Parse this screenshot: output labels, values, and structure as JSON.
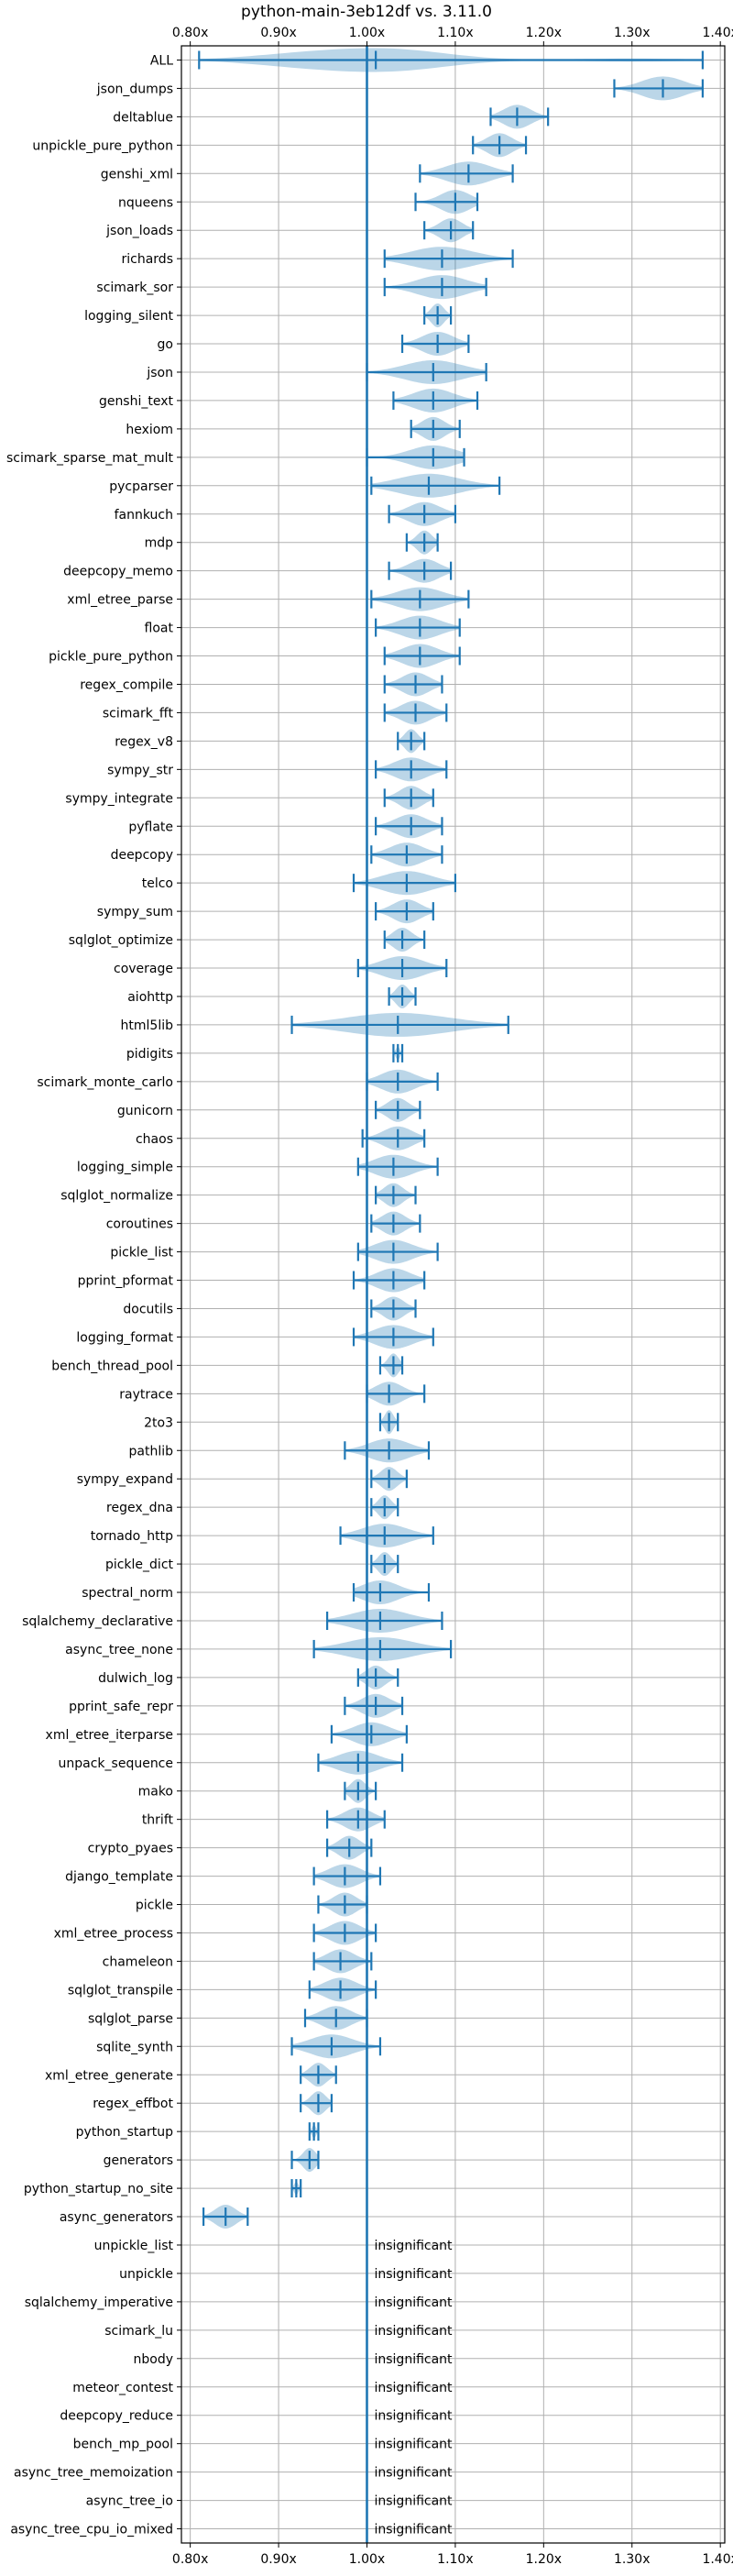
{
  "chart_data": {
    "type": "violin",
    "title": "python-main-3eb12df vs. 3.11.0",
    "xlim": [
      0.79,
      1.405
    ],
    "xticks": [
      0.8,
      0.9,
      1.0,
      1.1,
      1.2,
      1.3,
      1.4
    ],
    "xtick_labels": [
      "0.80x",
      "0.90x",
      "1.00x",
      "1.10x",
      "1.20x",
      "1.30x",
      "1.40x"
    ],
    "reference_x": 1.0,
    "grid": true,
    "tick_labels_top": true,
    "tick_labels_bottom": true,
    "insignificant_label": "insignificant",
    "benchmarks": [
      {
        "name": "ALL",
        "min": 0.81,
        "max": 1.38,
        "median": 1.01,
        "modes": [
          [
            0.93,
            0.6
          ],
          [
            1.03,
            1.0
          ],
          [
            1.3,
            0.15
          ]
        ]
      },
      {
        "name": "json_dumps",
        "min": 1.28,
        "max": 1.38,
        "median": 1.335
      },
      {
        "name": "deltablue",
        "min": 1.14,
        "max": 1.205,
        "median": 1.17
      },
      {
        "name": "unpickle_pure_python",
        "min": 1.12,
        "max": 1.18,
        "median": 1.15
      },
      {
        "name": "genshi_xml",
        "min": 1.06,
        "max": 1.165,
        "median": 1.115
      },
      {
        "name": "nqueens",
        "min": 1.055,
        "max": 1.125,
        "median": 1.1
      },
      {
        "name": "json_loads",
        "min": 1.065,
        "max": 1.12,
        "median": 1.095
      },
      {
        "name": "richards",
        "min": 1.02,
        "max": 1.165,
        "median": 1.085
      },
      {
        "name": "scimark_sor",
        "min": 1.02,
        "max": 1.135,
        "median": 1.085
      },
      {
        "name": "logging_silent",
        "min": 1.065,
        "max": 1.095,
        "median": 1.08
      },
      {
        "name": "go",
        "min": 1.04,
        "max": 1.115,
        "median": 1.08
      },
      {
        "name": "json",
        "min": 1.0,
        "max": 1.135,
        "median": 1.075
      },
      {
        "name": "genshi_text",
        "min": 1.03,
        "max": 1.125,
        "median": 1.075
      },
      {
        "name": "hexiom",
        "min": 1.05,
        "max": 1.105,
        "median": 1.075
      },
      {
        "name": "scimark_sparse_mat_mult",
        "min": 1.0,
        "max": 1.11,
        "median": 1.075
      },
      {
        "name": "pycparser",
        "min": 1.005,
        "max": 1.15,
        "median": 1.07
      },
      {
        "name": "fannkuch",
        "min": 1.025,
        "max": 1.1,
        "median": 1.065
      },
      {
        "name": "mdp",
        "min": 1.045,
        "max": 1.08,
        "median": 1.065
      },
      {
        "name": "deepcopy_memo",
        "min": 1.025,
        "max": 1.095,
        "median": 1.065
      },
      {
        "name": "xml_etree_parse",
        "min": 1.005,
        "max": 1.115,
        "median": 1.06
      },
      {
        "name": "float",
        "min": 1.01,
        "max": 1.105,
        "median": 1.06
      },
      {
        "name": "pickle_pure_python",
        "min": 1.02,
        "max": 1.105,
        "median": 1.06
      },
      {
        "name": "regex_compile",
        "min": 1.02,
        "max": 1.085,
        "median": 1.055
      },
      {
        "name": "scimark_fft",
        "min": 1.02,
        "max": 1.09,
        "median": 1.055
      },
      {
        "name": "regex_v8",
        "min": 1.035,
        "max": 1.065,
        "median": 1.05
      },
      {
        "name": "sympy_str",
        "min": 1.01,
        "max": 1.09,
        "median": 1.05
      },
      {
        "name": "sympy_integrate",
        "min": 1.02,
        "max": 1.075,
        "median": 1.05
      },
      {
        "name": "pyflate",
        "min": 1.01,
        "max": 1.085,
        "median": 1.05
      },
      {
        "name": "deepcopy",
        "min": 1.005,
        "max": 1.085,
        "median": 1.045
      },
      {
        "name": "telco",
        "min": 0.985,
        "max": 1.1,
        "median": 1.045
      },
      {
        "name": "sympy_sum",
        "min": 1.01,
        "max": 1.075,
        "median": 1.045
      },
      {
        "name": "sqlglot_optimize",
        "min": 1.02,
        "max": 1.065,
        "median": 1.04
      },
      {
        "name": "coverage",
        "min": 0.99,
        "max": 1.09,
        "median": 1.04
      },
      {
        "name": "aiohttp",
        "min": 1.025,
        "max": 1.055,
        "median": 1.04
      },
      {
        "name": "html5lib",
        "min": 0.915,
        "max": 1.16,
        "median": 1.035
      },
      {
        "name": "pidigits",
        "min": 1.03,
        "max": 1.04,
        "median": 1.035
      },
      {
        "name": "scimark_monte_carlo",
        "min": 1.0,
        "max": 1.08,
        "median": 1.035
      },
      {
        "name": "gunicorn",
        "min": 1.01,
        "max": 1.06,
        "median": 1.035
      },
      {
        "name": "chaos",
        "min": 0.995,
        "max": 1.065,
        "median": 1.035
      },
      {
        "name": "logging_simple",
        "min": 0.99,
        "max": 1.08,
        "median": 1.03
      },
      {
        "name": "sqlglot_normalize",
        "min": 1.01,
        "max": 1.055,
        "median": 1.03
      },
      {
        "name": "coroutines",
        "min": 1.005,
        "max": 1.06,
        "median": 1.03
      },
      {
        "name": "pickle_list",
        "min": 0.99,
        "max": 1.08,
        "median": 1.03
      },
      {
        "name": "pprint_pformat",
        "min": 0.985,
        "max": 1.065,
        "median": 1.03
      },
      {
        "name": "docutils",
        "min": 1.005,
        "max": 1.055,
        "median": 1.03
      },
      {
        "name": "logging_format",
        "min": 0.985,
        "max": 1.075,
        "median": 1.03
      },
      {
        "name": "bench_thread_pool",
        "min": 1.015,
        "max": 1.04,
        "median": 1.03
      },
      {
        "name": "raytrace",
        "min": 1.0,
        "max": 1.065,
        "median": 1.025
      },
      {
        "name": "2to3",
        "min": 1.015,
        "max": 1.035,
        "median": 1.025
      },
      {
        "name": "pathlib",
        "min": 0.975,
        "max": 1.07,
        "median": 1.025
      },
      {
        "name": "sympy_expand",
        "min": 1.005,
        "max": 1.045,
        "median": 1.025
      },
      {
        "name": "regex_dna",
        "min": 1.005,
        "max": 1.035,
        "median": 1.02
      },
      {
        "name": "tornado_http",
        "min": 0.97,
        "max": 1.075,
        "median": 1.02
      },
      {
        "name": "pickle_dict",
        "min": 1.005,
        "max": 1.035,
        "median": 1.02
      },
      {
        "name": "spectral_norm",
        "min": 0.985,
        "max": 1.07,
        "median": 1.015
      },
      {
        "name": "sqlalchemy_declarative",
        "min": 0.955,
        "max": 1.085,
        "median": 1.015
      },
      {
        "name": "async_tree_none",
        "min": 0.94,
        "max": 1.095,
        "median": 1.015
      },
      {
        "name": "dulwich_log",
        "min": 0.99,
        "max": 1.035,
        "median": 1.01
      },
      {
        "name": "pprint_safe_repr",
        "min": 0.975,
        "max": 1.04,
        "median": 1.01
      },
      {
        "name": "xml_etree_iterparse",
        "min": 0.96,
        "max": 1.045,
        "median": 1.005
      },
      {
        "name": "unpack_sequence",
        "min": 0.945,
        "max": 1.04,
        "median": 0.99
      },
      {
        "name": "mako",
        "min": 0.975,
        "max": 1.01,
        "median": 0.99
      },
      {
        "name": "thrift",
        "min": 0.955,
        "max": 1.02,
        "median": 0.99
      },
      {
        "name": "crypto_pyaes",
        "min": 0.955,
        "max": 1.005,
        "median": 0.98
      },
      {
        "name": "django_template",
        "min": 0.94,
        "max": 1.015,
        "median": 0.975
      },
      {
        "name": "pickle",
        "min": 0.945,
        "max": 1.0,
        "median": 0.975
      },
      {
        "name": "xml_etree_process",
        "min": 0.94,
        "max": 1.01,
        "median": 0.975
      },
      {
        "name": "chameleon",
        "min": 0.94,
        "max": 1.005,
        "median": 0.97
      },
      {
        "name": "sqlglot_transpile",
        "min": 0.935,
        "max": 1.01,
        "median": 0.97
      },
      {
        "name": "sqlglot_parse",
        "min": 0.93,
        "max": 1.0,
        "median": 0.965
      },
      {
        "name": "sqlite_synth",
        "min": 0.915,
        "max": 1.015,
        "median": 0.96
      },
      {
        "name": "xml_etree_generate",
        "min": 0.925,
        "max": 0.965,
        "median": 0.945
      },
      {
        "name": "regex_effbot",
        "min": 0.925,
        "max": 0.96,
        "median": 0.945
      },
      {
        "name": "python_startup",
        "min": 0.935,
        "max": 0.945,
        "median": 0.94
      },
      {
        "name": "generators",
        "min": 0.915,
        "max": 0.945,
        "median": 0.935
      },
      {
        "name": "python_startup_no_site",
        "min": 0.915,
        "max": 0.925,
        "median": 0.92
      },
      {
        "name": "async_generators",
        "min": 0.815,
        "max": 0.865,
        "median": 0.84
      },
      {
        "name": "unpickle_list",
        "insignificant": true
      },
      {
        "name": "unpickle",
        "insignificant": true
      },
      {
        "name": "sqlalchemy_imperative",
        "insignificant": true
      },
      {
        "name": "scimark_lu",
        "insignificant": true
      },
      {
        "name": "nbody",
        "insignificant": true
      },
      {
        "name": "meteor_contest",
        "insignificant": true
      },
      {
        "name": "deepcopy_reduce",
        "insignificant": true
      },
      {
        "name": "bench_mp_pool",
        "insignificant": true
      },
      {
        "name": "async_tree_memoization",
        "insignificant": true
      },
      {
        "name": "async_tree_io",
        "insignificant": true
      },
      {
        "name": "async_tree_cpu_io_mixed",
        "insignificant": true
      }
    ]
  }
}
